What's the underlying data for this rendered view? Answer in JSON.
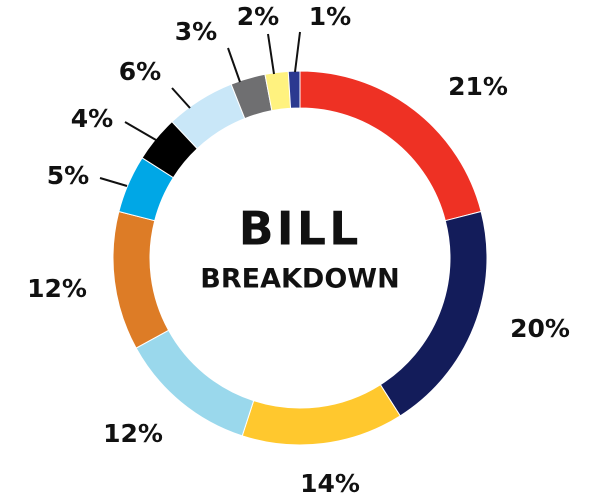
{
  "chart_data": {
    "type": "pie",
    "title": "BILL",
    "subtitle": "BREAKDOWN",
    "values": [
      21,
      20,
      14,
      12,
      12,
      5,
      4,
      6,
      3,
      2,
      1
    ],
    "value_labels": [
      "21%",
      "20%",
      "14%",
      "12%",
      "12%",
      "5%",
      "4%",
      "6%",
      "3%",
      "2%",
      "1%"
    ],
    "colors": [
      "#ee3124",
      "#131c5a",
      "#ffc82e",
      "#9ad8ec",
      "#dd7c26",
      "#00a7e6",
      "#000000",
      "#c9e7f8",
      "#6f6f71",
      "#fff27f",
      "#2b3990"
    ]
  }
}
